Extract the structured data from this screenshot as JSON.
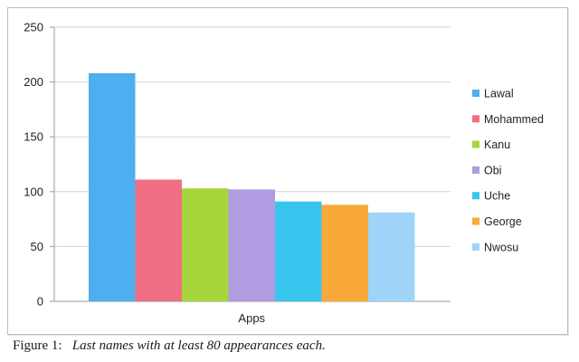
{
  "chart_data": {
    "type": "bar",
    "categories": [
      "Apps"
    ],
    "series": [
      {
        "name": "Lawal",
        "values": [
          208
        ],
        "color": "#4daef0"
      },
      {
        "name": "Mohammed",
        "values": [
          111
        ],
        "color": "#f06f82"
      },
      {
        "name": "Kanu",
        "values": [
          103
        ],
        "color": "#a6d63c"
      },
      {
        "name": "Obi",
        "values": [
          102
        ],
        "color": "#b09ce0"
      },
      {
        "name": "Uche",
        "values": [
          91
        ],
        "color": "#38c6ee"
      },
      {
        "name": "George",
        "values": [
          88
        ],
        "color": "#f9a93a"
      },
      {
        "name": "Nwosu",
        "values": [
          81
        ],
        "color": "#9fd3f7"
      }
    ],
    "ylim": [
      0,
      250
    ],
    "yticks": [
      0,
      50,
      100,
      150,
      200,
      250
    ],
    "grid": true,
    "legend": "right"
  },
  "caption": {
    "label": "Figure 1:",
    "text": "Last names with at least 80 appearances each."
  }
}
